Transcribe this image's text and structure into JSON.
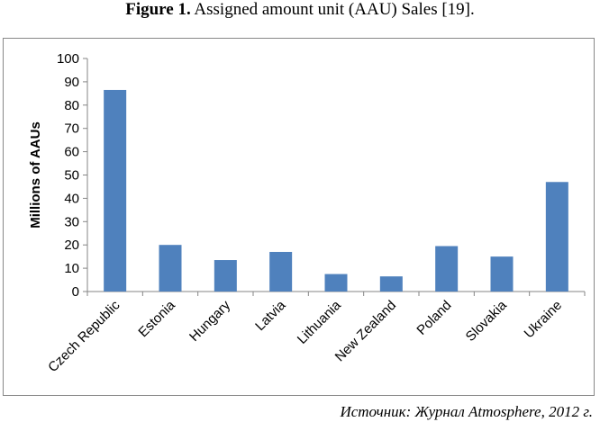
{
  "figure": {
    "label": "Figure 1.",
    "title": "Assigned amount unit (AAU) Sales [19]."
  },
  "source": "Источник: Журнал Atmosphere, 2012 г.",
  "colors": {
    "bar": "#4F81BD",
    "axis": "#868686",
    "grid": "#868686",
    "text": "#000000",
    "frame": "#888888"
  },
  "chart_data": {
    "type": "bar",
    "categories": [
      "Czech Republic",
      "Estonia",
      "Hungary",
      "Latvia",
      "Lithuania",
      "New Zealand",
      "Poland",
      "Slovakia",
      "Ukraine"
    ],
    "values": [
      86.5,
      20,
      13.5,
      17,
      7.5,
      6.5,
      19.5,
      15,
      47
    ],
    "title": "",
    "xlabel": "",
    "ylabel": "Millions of AAUs",
    "ylim": [
      0,
      100
    ],
    "yticks": [
      0,
      10,
      20,
      30,
      40,
      50,
      60,
      70,
      80,
      90,
      100
    ],
    "grid": false,
    "legend": false
  }
}
